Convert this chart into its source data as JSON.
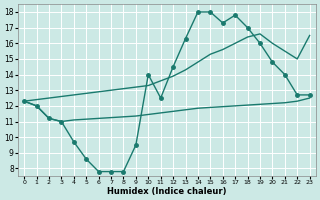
{
  "xlabel": "Humidex (Indice chaleur)",
  "bg_color": "#cce9e5",
  "line_color": "#1a7a6e",
  "grid_color": "#ffffff",
  "xlim": [
    -0.5,
    23.5
  ],
  "ylim": [
    7.5,
    18.5
  ],
  "yticks": [
    8,
    9,
    10,
    11,
    12,
    13,
    14,
    15,
    16,
    17,
    18
  ],
  "xticks": [
    0,
    1,
    2,
    3,
    4,
    5,
    6,
    7,
    8,
    9,
    10,
    11,
    12,
    13,
    14,
    15,
    16,
    17,
    18,
    19,
    20,
    21,
    22,
    23
  ],
  "line1_x": [
    0,
    1,
    2,
    3,
    4,
    5,
    6,
    7,
    8,
    9,
    10,
    11,
    12,
    13,
    14,
    15,
    16,
    17,
    18,
    19,
    20,
    21,
    22,
    23
  ],
  "line1_y": [
    12.3,
    12.0,
    11.2,
    11.0,
    9.7,
    8.6,
    7.8,
    7.8,
    7.8,
    9.5,
    14.0,
    12.5,
    14.5,
    16.3,
    18.0,
    18.0,
    17.3,
    17.8,
    17.0,
    16.0,
    14.8,
    14.0,
    12.7,
    12.7
  ],
  "line2_x": [
    0,
    1,
    2,
    3,
    4,
    5,
    6,
    7,
    8,
    9,
    10,
    11,
    12,
    13,
    14,
    15,
    16,
    17,
    18,
    19,
    20,
    21,
    22,
    23
  ],
  "line2_y": [
    12.3,
    12.0,
    11.2,
    11.0,
    11.1,
    11.15,
    11.2,
    11.25,
    11.3,
    11.35,
    11.45,
    11.55,
    11.65,
    11.75,
    11.85,
    11.9,
    11.95,
    12.0,
    12.05,
    12.1,
    12.15,
    12.2,
    12.3,
    12.5
  ],
  "line3_x": [
    0,
    10,
    11,
    12,
    13,
    14,
    15,
    16,
    17,
    18,
    19,
    20,
    21,
    22,
    23
  ],
  "line3_y": [
    12.3,
    13.3,
    13.6,
    13.9,
    14.3,
    14.8,
    15.3,
    15.6,
    16.0,
    16.4,
    16.6,
    16.0,
    15.5,
    15.0,
    16.5
  ],
  "marker_size": 2.5,
  "line_width": 1.0
}
